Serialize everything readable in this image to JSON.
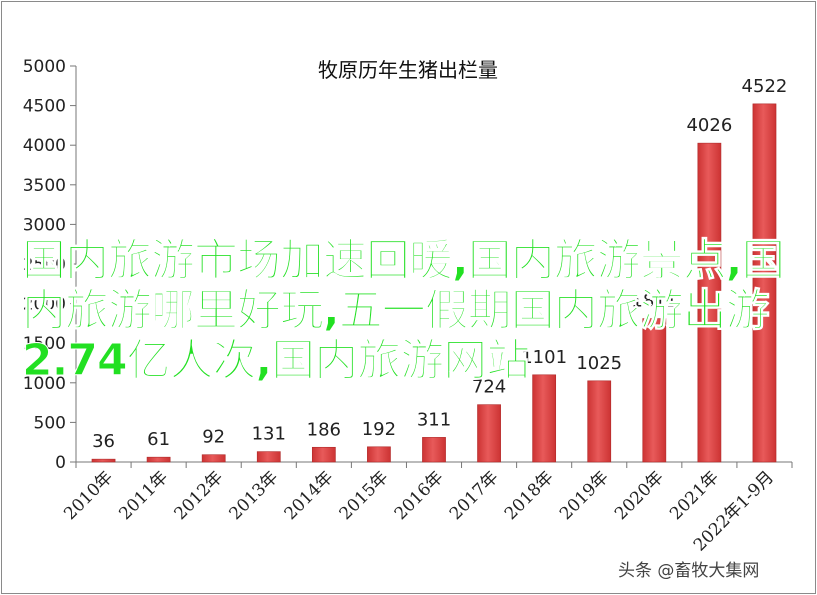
{
  "chart_data": {
    "type": "bar",
    "title": "牧原历年生猪出栏量",
    "categories": [
      "2010年",
      "2011年",
      "2012年",
      "2013年",
      "2014年",
      "2015年",
      "2016年",
      "2017年",
      "2018年",
      "2019年",
      "2020年",
      "2021年",
      "2022年1-9月"
    ],
    "values": [
      36,
      61,
      92,
      131,
      186,
      192,
      311,
      724,
      1101,
      1025,
      1811,
      4026,
      4522
    ],
    "value_labels": [
      "36",
      "61",
      "92",
      "131",
      "186",
      "192",
      "311",
      "724",
      "1101",
      "1025",
      "1811",
      "4026",
      "4522"
    ],
    "ylim": [
      0,
      5000
    ],
    "yticks": [
      "0",
      "500",
      "1000",
      "1500",
      "2000",
      "2500",
      "3000",
      "3500",
      "4000",
      "4500",
      "5000"
    ],
    "grid": false,
    "bar_color": "#cc3333",
    "bar_color_light": "#e85a5a"
  },
  "overlay_text": "国内旅游市场加速回暖,国内旅游景点,国内旅游哪里好玩,五一假期国内旅游出游2.74亿人次,国内旅游网站",
  "watermark": "头条 @畜牧大集网"
}
